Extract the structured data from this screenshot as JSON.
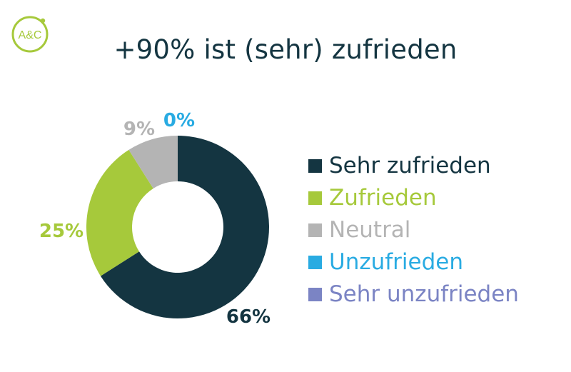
{
  "logo": {
    "text": "A&C",
    "color": "#a6c93b"
  },
  "title": "+90% ist (sehr) zufrieden",
  "chart_data": {
    "type": "pie",
    "donut": true,
    "categories": [
      "Sehr zufrieden",
      "Zufrieden",
      "Neutral",
      "Unzufrieden",
      "Sehr unzufrieden"
    ],
    "values": [
      66,
      25,
      9,
      0,
      0
    ],
    "labels": [
      "66%",
      "25%",
      "9%",
      "0%",
      ""
    ],
    "colors": [
      "#143541",
      "#a6c93b",
      "#b4b4b4",
      "#29abe2",
      "#7b84c4"
    ],
    "label_colors": [
      "#143541",
      "#a6c93b",
      "#b4b4b4",
      "#29abe2",
      "#7b84c4"
    ],
    "legend_position": "right"
  },
  "legend": [
    {
      "label": "Sehr zufrieden",
      "color": "#143541"
    },
    {
      "label": "Zufrieden",
      "color": "#a6c93b"
    },
    {
      "label": "Neutral",
      "color": "#b4b4b4"
    },
    {
      "label": "Unzufrieden",
      "color": "#29abe2"
    },
    {
      "label": "Sehr unzufrieden",
      "color": "#7b84c4"
    }
  ]
}
